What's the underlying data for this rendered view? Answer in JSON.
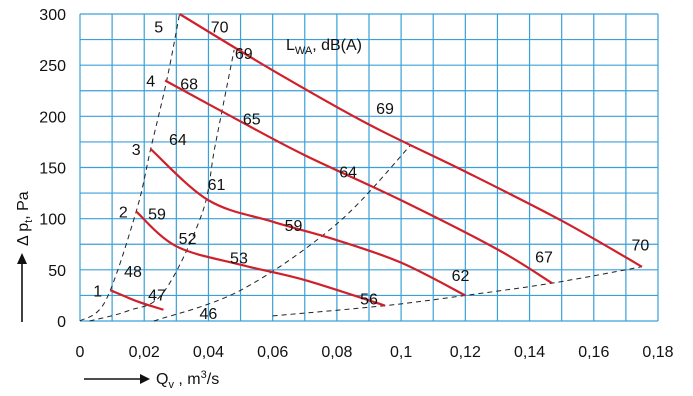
{
  "chart_data": {
    "type": "line",
    "title": "",
    "legend_label": "L",
    "legend_subscript": "WA",
    "legend_unit": ", dB(A)",
    "xlabel": "Q",
    "xlabel_sub": "v",
    "xlabel_unit": " , m",
    "xlabel_sup": "3",
    "xlabel_end": "/s",
    "ylabel": "Δ p",
    "ylabel_sub": "t",
    "ylabel_unit": ", Pa",
    "xlim": [
      0,
      0.18
    ],
    "ylim": [
      0,
      300
    ],
    "x_ticks": [
      {
        "v": 0,
        "label": "0"
      },
      {
        "v": 0.02,
        "label": "0,02"
      },
      {
        "v": 0.04,
        "label": "0,04"
      },
      {
        "v": 0.06,
        "label": "0,06"
      },
      {
        "v": 0.08,
        "label": "0,08"
      },
      {
        "v": 0.1,
        "label": "0,1"
      },
      {
        "v": 0.12,
        "label": "0,12"
      },
      {
        "v": 0.14,
        "label": "0,14"
      },
      {
        "v": 0.16,
        "label": "0,16"
      },
      {
        "v": 0.18,
        "label": "0,18"
      }
    ],
    "y_ticks": [
      {
        "v": 0,
        "label": "0"
      },
      {
        "v": 50,
        "label": "50"
      },
      {
        "v": 100,
        "label": "100"
      },
      {
        "v": 150,
        "label": "150"
      },
      {
        "v": 200,
        "label": "200"
      },
      {
        "v": 250,
        "label": "250"
      },
      {
        "v": 300,
        "label": "300"
      }
    ],
    "grid": true,
    "series": [
      {
        "name": "1",
        "color": "#d0202a",
        "points": [
          [
            0.0095,
            30
          ],
          [
            0.018,
            19
          ],
          [
            0.026,
            11
          ]
        ]
      },
      {
        "name": "2",
        "color": "#d0202a",
        "points": [
          [
            0.0175,
            107
          ],
          [
            0.03,
            73
          ],
          [
            0.05,
            55
          ],
          [
            0.07,
            40
          ],
          [
            0.095,
            15
          ]
        ]
      },
      {
        "name": "3",
        "color": "#d0202a",
        "points": [
          [
            0.022,
            168
          ],
          [
            0.04,
            118
          ],
          [
            0.06,
            97
          ],
          [
            0.08,
            79
          ],
          [
            0.1,
            57
          ],
          [
            0.12,
            25
          ]
        ]
      },
      {
        "name": "4",
        "color": "#d0202a",
        "points": [
          [
            0.0265,
            235
          ],
          [
            0.05,
            195
          ],
          [
            0.07,
            162
          ],
          [
            0.1,
            118
          ],
          [
            0.13,
            70
          ],
          [
            0.147,
            37
          ]
        ]
      },
      {
        "name": "5",
        "color": "#d0202a",
        "points": [
          [
            0.031,
            300
          ],
          [
            0.06,
            245
          ],
          [
            0.09,
            192
          ],
          [
            0.12,
            146
          ],
          [
            0.15,
            98
          ],
          [
            0.175,
            53
          ]
        ]
      }
    ],
    "system_curves": [
      {
        "points": [
          [
            0,
            0
          ],
          [
            0.008,
            20
          ],
          [
            0.0175,
            107
          ],
          [
            0.022,
            168
          ],
          [
            0.027,
            235
          ],
          [
            0.031,
            300
          ]
        ]
      },
      {
        "points": [
          [
            0.003,
            0
          ],
          [
            0.015,
            10
          ],
          [
            0.026,
            28
          ],
          [
            0.038,
            105
          ],
          [
            0.042,
            170
          ],
          [
            0.048,
            265
          ]
        ]
      },
      {
        "points": [
          [
            0.023,
            0
          ],
          [
            0.05,
            30
          ],
          [
            0.08,
            95
          ],
          [
            0.103,
            172
          ]
        ]
      },
      {
        "points": [
          [
            0.06,
            5
          ],
          [
            0.095,
            15
          ],
          [
            0.12,
            25
          ],
          [
            0.147,
            37
          ],
          [
            0.175,
            53
          ]
        ]
      }
    ],
    "annotations": [
      {
        "text": "1",
        "x": 0.0055,
        "y": 30,
        "kind": "curve-number"
      },
      {
        "text": "2",
        "x": 0.0135,
        "y": 107,
        "kind": "curve-number"
      },
      {
        "text": "3",
        "x": 0.0175,
        "y": 168,
        "kind": "curve-number"
      },
      {
        "text": "4",
        "x": 0.022,
        "y": 235,
        "kind": "curve-number"
      },
      {
        "text": "5",
        "x": 0.0245,
        "y": 288,
        "kind": "curve-number"
      },
      {
        "text": "70",
        "x": 0.0435,
        "y": 288,
        "kind": "sound-level"
      },
      {
        "text": "69",
        "x": 0.051,
        "y": 262,
        "kind": "sound-level"
      },
      {
        "text": "68",
        "x": 0.034,
        "y": 232,
        "kind": "sound-level"
      },
      {
        "text": "65",
        "x": 0.0535,
        "y": 198,
        "kind": "sound-level"
      },
      {
        "text": "69",
        "x": 0.095,
        "y": 208,
        "kind": "sound-level"
      },
      {
        "text": "64",
        "x": 0.0305,
        "y": 178,
        "kind": "sound-level"
      },
      {
        "text": "61",
        "x": 0.0425,
        "y": 134,
        "kind": "sound-level"
      },
      {
        "text": "64",
        "x": 0.0835,
        "y": 146,
        "kind": "sound-level"
      },
      {
        "text": "59",
        "x": 0.024,
        "y": 105,
        "kind": "sound-level"
      },
      {
        "text": "52",
        "x": 0.0335,
        "y": 81,
        "kind": "sound-level"
      },
      {
        "text": "59",
        "x": 0.0665,
        "y": 94,
        "kind": "sound-level"
      },
      {
        "text": "53",
        "x": 0.0495,
        "y": 62,
        "kind": "sound-level"
      },
      {
        "text": "48",
        "x": 0.0165,
        "y": 49,
        "kind": "sound-level"
      },
      {
        "text": "47",
        "x": 0.024,
        "y": 26,
        "kind": "sound-level"
      },
      {
        "text": "46",
        "x": 0.04,
        "y": 8,
        "kind": "sound-level"
      },
      {
        "text": "56",
        "x": 0.09,
        "y": 22,
        "kind": "sound-level"
      },
      {
        "text": "62",
        "x": 0.1185,
        "y": 45,
        "kind": "sound-level"
      },
      {
        "text": "67",
        "x": 0.1445,
        "y": 63,
        "kind": "sound-level"
      },
      {
        "text": "70",
        "x": 0.1745,
        "y": 75,
        "kind": "sound-level"
      }
    ]
  }
}
